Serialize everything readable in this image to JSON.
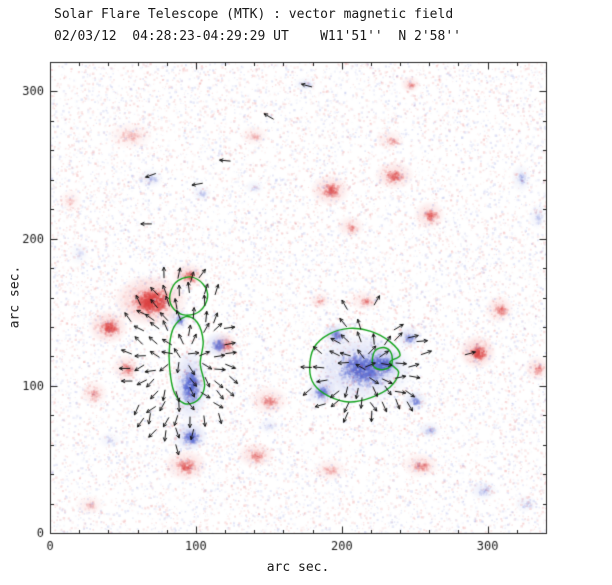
{
  "header": {
    "title": "Solar Flare Telescope (MTK) : vector magnetic field",
    "subtitle": "02/03/12  04:28:23-04:29:29 UT    W11'51''  N 2'58''"
  },
  "chart_data": {
    "type": "heatmap",
    "description": "Solar vector magnetogram: red = positive line-of-sight field, blue = negative, green contours = strong-field cores, short black arrows = transverse field vectors",
    "xlabel": "arc sec.",
    "ylabel": "arc sec.",
    "xlim": [
      0,
      340
    ],
    "ylim": [
      0,
      320
    ],
    "xticks": [
      0,
      100,
      200,
      300
    ],
    "yticks": [
      0,
      100,
      200,
      300
    ],
    "minor_tick_step": 20,
    "colors": {
      "positive_base": "#ee5f5f",
      "positive_speck": "#e04848",
      "negative_base": "#7b8ade",
      "negative_speck": "#5f6fd6",
      "contour": "#12a41b",
      "arrow": "#111111",
      "axis": "#222222",
      "text": "#1a1a1a"
    },
    "blobs_format": [
      "x",
      "y",
      "rx",
      "ry",
      "polarity(p/n)",
      "intensity"
    ],
    "blobs": [
      [
        69,
        158,
        26,
        18,
        "p",
        0.9
      ],
      [
        40,
        140,
        14,
        12,
        "p",
        0.7
      ],
      [
        95,
        175,
        12,
        9,
        "p",
        0.6
      ],
      [
        52,
        112,
        10,
        10,
        "p",
        0.5
      ],
      [
        30,
        95,
        10,
        9,
        "p",
        0.4
      ],
      [
        120,
        128,
        9,
        9,
        "p",
        0.6
      ],
      [
        150,
        90,
        14,
        10,
        "p",
        0.45
      ],
      [
        192,
        233,
        14,
        11,
        "p",
        0.6
      ],
      [
        236,
        243,
        14,
        10,
        "p",
        0.6
      ],
      [
        260,
        216,
        11,
        10,
        "p",
        0.55
      ],
      [
        206,
        208,
        10,
        8,
        "p",
        0.4
      ],
      [
        233,
        267,
        10,
        7,
        "p",
        0.35
      ],
      [
        247,
        305,
        7,
        6,
        "p",
        0.45
      ],
      [
        293,
        123,
        13,
        12,
        "p",
        0.75
      ],
      [
        308,
        152,
        10,
        10,
        "p",
        0.5
      ],
      [
        334,
        112,
        9,
        9,
        "p",
        0.45
      ],
      [
        93,
        46,
        15,
        11,
        "p",
        0.6
      ],
      [
        141,
        53,
        13,
        9,
        "p",
        0.5
      ],
      [
        192,
        43,
        12,
        8,
        "p",
        0.35
      ],
      [
        254,
        46,
        13,
        9,
        "p",
        0.45
      ],
      [
        27,
        19,
        10,
        7,
        "p",
        0.3
      ],
      [
        55,
        270,
        16,
        10,
        "p",
        0.3
      ],
      [
        14,
        226,
        8,
        8,
        "p",
        0.25
      ],
      [
        140,
        270,
        10,
        7,
        "p",
        0.3
      ],
      [
        216,
        158,
        12,
        7,
        "p",
        0.4
      ],
      [
        185,
        158,
        8,
        6,
        "p",
        0.35
      ],
      [
        96,
        100,
        13,
        26,
        "n",
        0.85
      ],
      [
        96,
        66,
        12,
        11,
        "n",
        0.8
      ],
      [
        115,
        128,
        10,
        9,
        "n",
        0.7
      ],
      [
        88,
        145,
        8,
        8,
        "n",
        0.6
      ],
      [
        214,
        112,
        36,
        25,
        "n",
        0.8
      ],
      [
        228,
        115,
        14,
        11,
        "n",
        1.0
      ],
      [
        186,
        96,
        11,
        10,
        "n",
        0.7
      ],
      [
        196,
        135,
        10,
        8,
        "n",
        0.7
      ],
      [
        246,
        133,
        9,
        8,
        "n",
        0.6
      ],
      [
        250,
        90,
        9,
        8,
        "n",
        0.55
      ],
      [
        260,
        70,
        8,
        6,
        "n",
        0.4
      ],
      [
        69,
        241,
        9,
        7,
        "n",
        0.35
      ],
      [
        104,
        231,
        7,
        6,
        "n",
        0.3
      ],
      [
        150,
        73,
        8,
        6,
        "n",
        0.25
      ],
      [
        323,
        241,
        7,
        10,
        "n",
        0.35
      ],
      [
        334,
        215,
        6,
        9,
        "n",
        0.3
      ],
      [
        297,
        29,
        10,
        7,
        "n",
        0.35
      ],
      [
        326,
        20,
        8,
        6,
        "n",
        0.3
      ],
      [
        20,
        190,
        7,
        8,
        "n",
        0.2
      ],
      [
        175,
        305,
        8,
        5,
        "n",
        0.3
      ],
      [
        140,
        235,
        7,
        5,
        "n",
        0.25
      ],
      [
        41,
        63,
        8,
        6,
        "n",
        0.25
      ]
    ],
    "contours_note": "green contours outline strong-field cores (data coords)",
    "contours": [
      {
        "name": "left-upper-core",
        "points": [
          [
            82,
            160
          ],
          [
            86,
            170
          ],
          [
            96,
            174
          ],
          [
            105,
            169
          ],
          [
            108,
            160
          ],
          [
            103,
            151
          ],
          [
            93,
            148
          ],
          [
            85,
            152
          ]
        ]
      },
      {
        "name": "left-elongated-core",
        "points": [
          [
            85,
            140
          ],
          [
            93,
            147
          ],
          [
            101,
            143
          ],
          [
            105,
            130
          ],
          [
            103,
            115
          ],
          [
            106,
            100
          ],
          [
            101,
            90
          ],
          [
            92,
            88
          ],
          [
            85,
            96
          ],
          [
            82,
            112
          ],
          [
            82,
            128
          ]
        ]
      },
      {
        "name": "right-outer-core",
        "points": [
          [
            178,
            112
          ],
          [
            181,
            126
          ],
          [
            191,
            135
          ],
          [
            205,
            139
          ],
          [
            220,
            137
          ],
          [
            233,
            130
          ],
          [
            240,
            121
          ],
          [
            233,
            116
          ],
          [
            239,
            109
          ],
          [
            233,
            99
          ],
          [
            220,
            92
          ],
          [
            205,
            89
          ],
          [
            191,
            93
          ],
          [
            181,
            101
          ]
        ]
      },
      {
        "name": "right-inner-core",
        "points": [
          [
            221,
            118
          ],
          [
            223,
            124
          ],
          [
            229,
            126
          ],
          [
            234,
            122
          ],
          [
            234,
            114
          ],
          [
            228,
            111
          ],
          [
            222,
            113
          ]
        ]
      }
    ],
    "vector_clusters": [
      {
        "name": "left-region",
        "cx": 90,
        "cy": 118,
        "x0": 52,
        "x1": 128,
        "y0": 58,
        "y1": 175,
        "spacing": 9,
        "mask_rx": 42,
        "mask_ry": 62
      },
      {
        "name": "right-region",
        "cx": 216,
        "cy": 112,
        "x0": 176,
        "x1": 260,
        "y0": 78,
        "y1": 148,
        "spacing": 9,
        "mask_rx": 46,
        "mask_ry": 36
      }
    ],
    "stray_arrows_format": [
      "x",
      "y",
      "angle_deg"
    ],
    "stray_arrows": [
      [
        69,
        243,
        200
      ],
      [
        101,
        237,
        190
      ],
      [
        66,
        210,
        180
      ],
      [
        150,
        283,
        150
      ],
      [
        176,
        304,
        165
      ],
      [
        202,
        155,
        120
      ],
      [
        224,
        158,
        60
      ],
      [
        288,
        122,
        15
      ],
      [
        120,
        253,
        175
      ]
    ],
    "noise": {
      "count": 16000,
      "red_bias": 0.56,
      "white_speckle": 9000
    }
  }
}
